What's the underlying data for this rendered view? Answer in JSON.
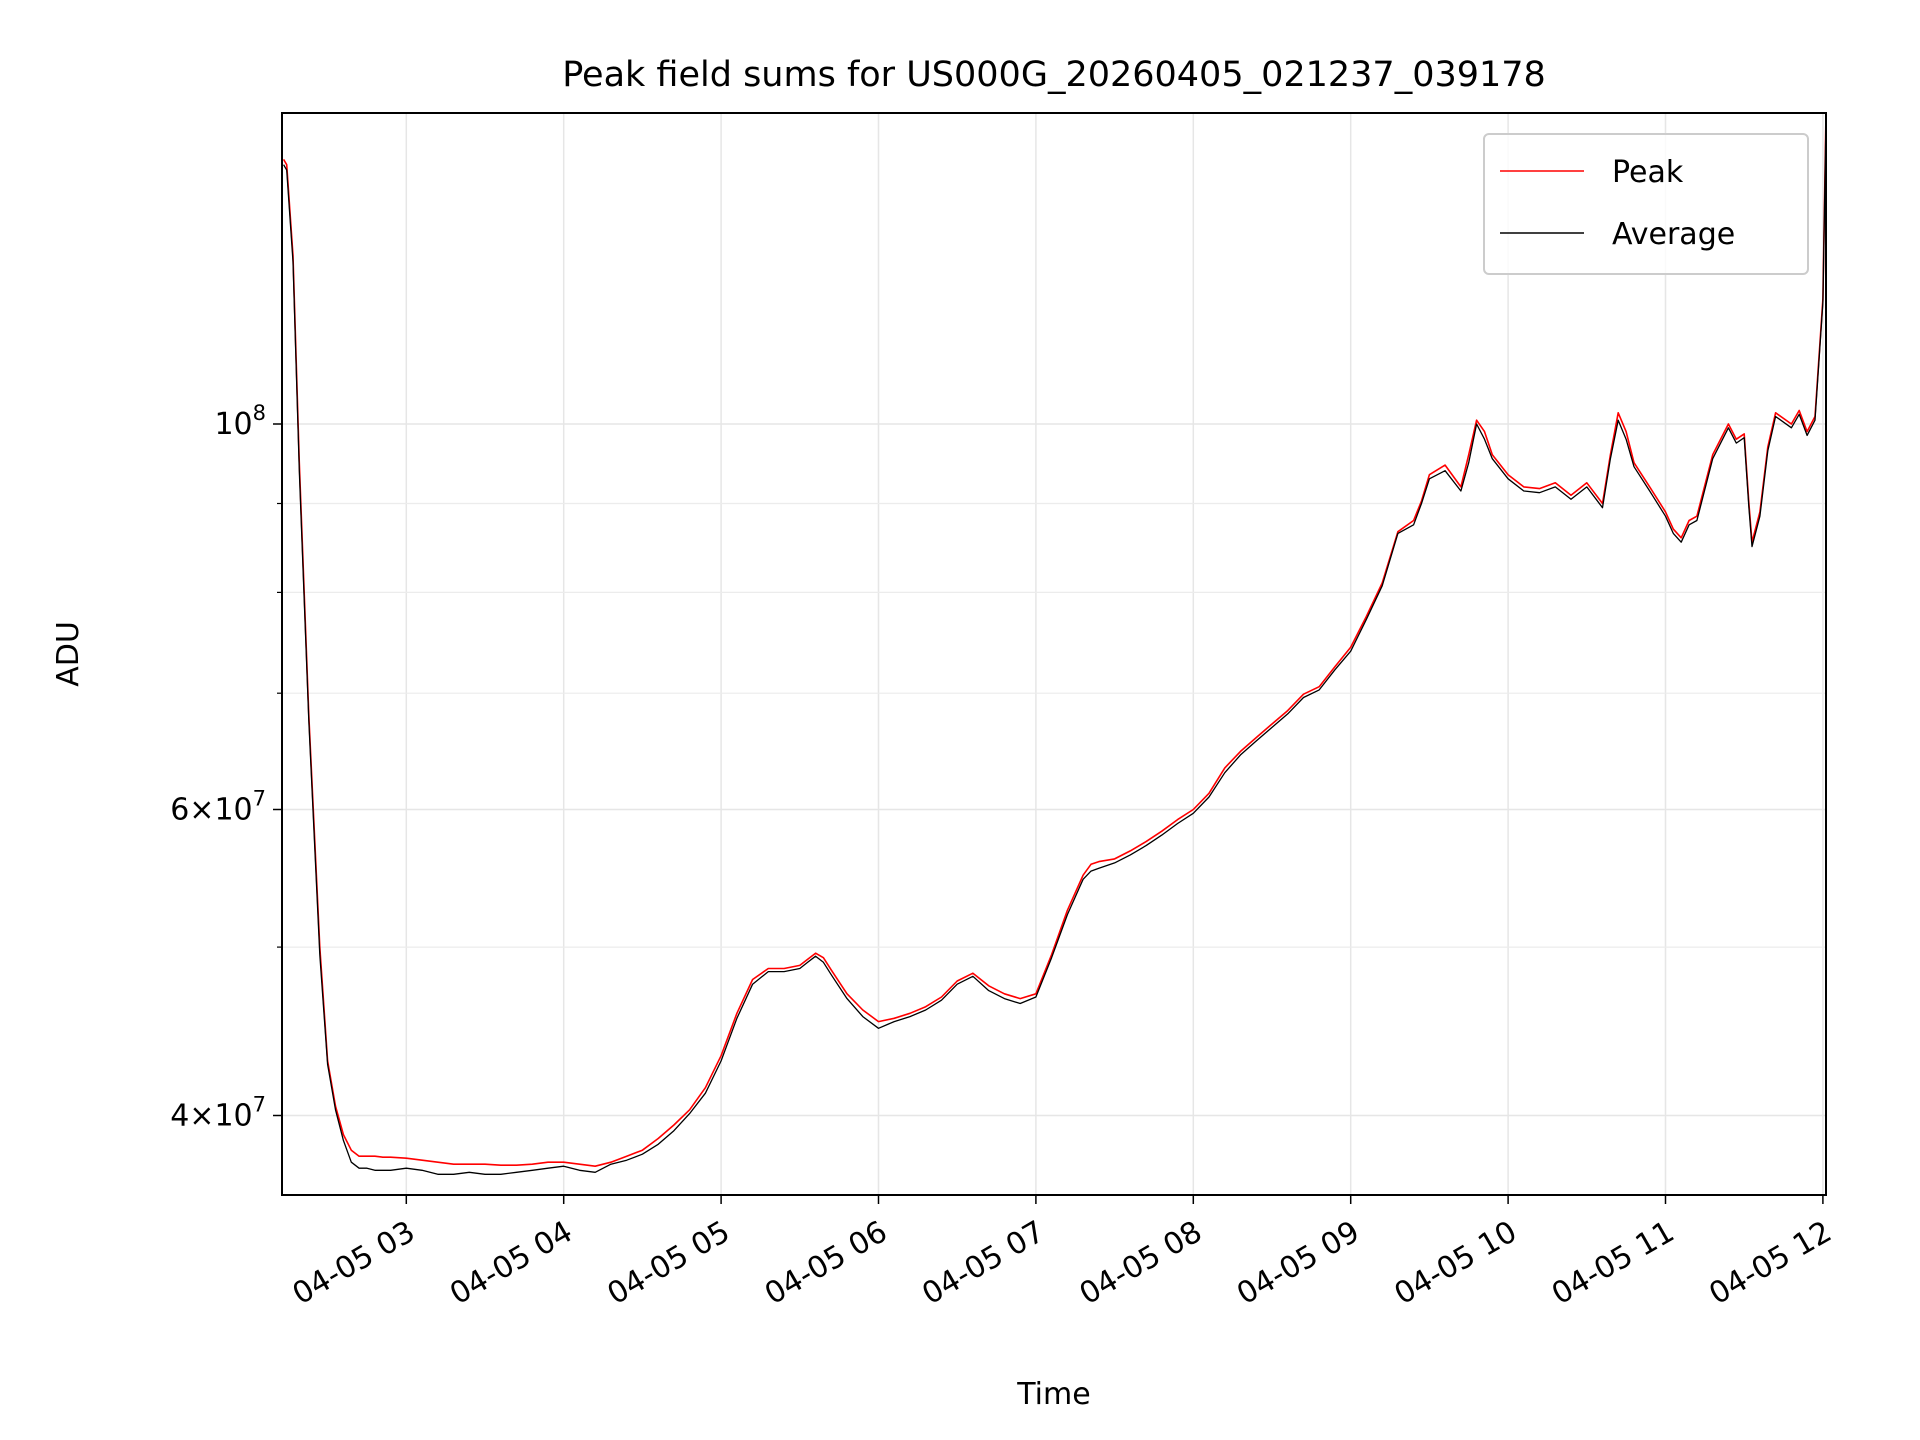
{
  "chart_data": {
    "type": "line",
    "title": "Peak field sums for US000G_20260405_021237_039178",
    "xlabel": "Time",
    "ylabel": "ADU",
    "y_scale": "log",
    "x_unit": "hours after 04-05 00:00",
    "xlim": [
      2.21,
      12.02
    ],
    "ylim": [
      36000000,
      151000000
    ],
    "grid": true,
    "legend_position": "top-right",
    "x_ticks": [
      {
        "value": 3,
        "label": "04-05 03"
      },
      {
        "value": 4,
        "label": "04-05 04"
      },
      {
        "value": 5,
        "label": "04-05 05"
      },
      {
        "value": 6,
        "label": "04-05 06"
      },
      {
        "value": 7,
        "label": "04-05 07"
      },
      {
        "value": 8,
        "label": "04-05 08"
      },
      {
        "value": 9,
        "label": "04-05 09"
      },
      {
        "value": 10,
        "label": "04-05 10"
      },
      {
        "value": 11,
        "label": "04-05 11"
      },
      {
        "value": 12,
        "label": "04-05 12"
      }
    ],
    "y_ticks": [
      {
        "value": 40000000,
        "base": "4×10",
        "exp": "7"
      },
      {
        "value": 60000000,
        "base": "6×10",
        "exp": "7"
      },
      {
        "value": 100000000,
        "base": "10",
        "exp": "8"
      }
    ],
    "y_minor_ticks": [
      50000000,
      70000000,
      80000000,
      90000000
    ],
    "series": [
      {
        "name": "Peak",
        "color": "#ff0000",
        "x": [
          2.22,
          2.24,
          2.28,
          2.32,
          2.38,
          2.45,
          2.5,
          2.55,
          2.6,
          2.65,
          2.7,
          2.75,
          2.8,
          2.85,
          2.9,
          3.0,
          3.1,
          3.2,
          3.3,
          3.4,
          3.5,
          3.6,
          3.7,
          3.8,
          3.9,
          4.0,
          4.1,
          4.2,
          4.3,
          4.4,
          4.5,
          4.6,
          4.7,
          4.8,
          4.9,
          5.0,
          5.1,
          5.2,
          5.3,
          5.4,
          5.5,
          5.55,
          5.6,
          5.65,
          5.7,
          5.8,
          5.9,
          6.0,
          6.1,
          6.2,
          6.3,
          6.4,
          6.5,
          6.6,
          6.7,
          6.8,
          6.9,
          7.0,
          7.1,
          7.2,
          7.3,
          7.35,
          7.4,
          7.5,
          7.6,
          7.7,
          7.8,
          7.9,
          8.0,
          8.1,
          8.2,
          8.3,
          8.4,
          8.5,
          8.6,
          8.7,
          8.8,
          8.9,
          9.0,
          9.1,
          9.2,
          9.3,
          9.4,
          9.45,
          9.5,
          9.6,
          9.7,
          9.75,
          9.8,
          9.85,
          9.9,
          10.0,
          10.1,
          10.2,
          10.3,
          10.4,
          10.5,
          10.6,
          10.65,
          10.7,
          10.75,
          10.8,
          10.9,
          11.0,
          11.05,
          11.1,
          11.15,
          11.2,
          11.3,
          11.4,
          11.45,
          11.5,
          11.53,
          11.55,
          11.6,
          11.65,
          11.7,
          11.8,
          11.85,
          11.9,
          11.95,
          12.0,
          12.02
        ],
        "values": [
          142000000,
          141000000,
          125000000,
          95000000,
          68000000,
          50000000,
          43000000,
          40500000,
          39000000,
          38200000,
          37900000,
          37900000,
          37900000,
          37850000,
          37850000,
          37800000,
          37700000,
          37600000,
          37500000,
          37500000,
          37500000,
          37450000,
          37450000,
          37500000,
          37600000,
          37600000,
          37500000,
          37400000,
          37600000,
          37900000,
          38200000,
          38800000,
          39500000,
          40300000,
          41500000,
          43300000,
          45800000,
          47900000,
          48600000,
          48600000,
          48800000,
          49200000,
          49600000,
          49300000,
          48500000,
          47000000,
          46000000,
          45300000,
          45500000,
          45800000,
          46200000,
          46800000,
          47800000,
          48300000,
          47500000,
          47000000,
          46700000,
          47000000,
          49500000,
          52500000,
          55000000,
          55800000,
          56000000,
          56200000,
          56800000,
          57500000,
          58300000,
          59200000,
          60000000,
          61300000,
          63400000,
          64800000,
          66000000,
          67200000,
          68400000,
          69900000,
          70600000,
          72500000,
          74400000,
          77500000,
          81000000,
          86700000,
          88000000,
          90300000,
          93500000,
          94700000,
          92000000,
          96000000,
          100500000,
          99000000,
          96000000,
          93500000,
          92000000,
          91800000,
          92500000,
          91000000,
          92500000,
          90000000,
          96000000,
          101500000,
          99000000,
          95000000,
          92000000,
          89000000,
          87000000,
          86000000,
          88000000,
          88500000,
          96000000,
          100000000,
          98000000,
          98700000,
          90000000,
          85500000,
          89000000,
          97000000,
          101500000,
          100000000,
          101800000,
          99000000,
          101000000,
          118000000,
          151000000
        ]
      },
      {
        "name": "Average",
        "color": "#000000",
        "x": [
          2.22,
          2.24,
          2.28,
          2.32,
          2.38,
          2.45,
          2.5,
          2.55,
          2.6,
          2.65,
          2.7,
          2.75,
          2.8,
          2.85,
          2.9,
          3.0,
          3.1,
          3.2,
          3.3,
          3.4,
          3.5,
          3.6,
          3.7,
          3.8,
          3.9,
          4.0,
          4.1,
          4.2,
          4.3,
          4.4,
          4.5,
          4.6,
          4.7,
          4.8,
          4.9,
          5.0,
          5.1,
          5.2,
          5.3,
          5.4,
          5.5,
          5.55,
          5.6,
          5.65,
          5.7,
          5.8,
          5.9,
          6.0,
          6.1,
          6.2,
          6.3,
          6.4,
          6.5,
          6.6,
          6.7,
          6.8,
          6.9,
          7.0,
          7.1,
          7.2,
          7.3,
          7.35,
          7.4,
          7.5,
          7.6,
          7.7,
          7.8,
          7.9,
          8.0,
          8.1,
          8.2,
          8.3,
          8.4,
          8.5,
          8.6,
          8.7,
          8.8,
          8.9,
          9.0,
          9.1,
          9.2,
          9.3,
          9.4,
          9.45,
          9.5,
          9.6,
          9.7,
          9.75,
          9.8,
          9.85,
          9.9,
          10.0,
          10.1,
          10.2,
          10.3,
          10.4,
          10.5,
          10.6,
          10.65,
          10.7,
          10.75,
          10.8,
          10.9,
          11.0,
          11.05,
          11.1,
          11.15,
          11.2,
          11.3,
          11.4,
          11.45,
          11.5,
          11.53,
          11.55,
          11.6,
          11.65,
          11.7,
          11.8,
          11.85,
          11.9,
          11.95,
          12.0,
          12.02
        ],
        "values": [
          141000000,
          140000000,
          124000000,
          94000000,
          67500000,
          49500000,
          42800000,
          40300000,
          38700000,
          37600000,
          37300000,
          37300000,
          37200000,
          37200000,
          37200000,
          37300000,
          37200000,
          37000000,
          37000000,
          37100000,
          37000000,
          37000000,
          37100000,
          37200000,
          37300000,
          37400000,
          37200000,
          37100000,
          37500000,
          37700000,
          38000000,
          38500000,
          39200000,
          40100000,
          41200000,
          43000000,
          45500000,
          47600000,
          48400000,
          48400000,
          48600000,
          49000000,
          49400000,
          49000000,
          48200000,
          46700000,
          45600000,
          44900000,
          45300000,
          45600000,
          46000000,
          46600000,
          47600000,
          48100000,
          47200000,
          46700000,
          46400000,
          46800000,
          49300000,
          52200000,
          54700000,
          55300000,
          55500000,
          55900000,
          56500000,
          57200000,
          58000000,
          58900000,
          59700000,
          61000000,
          63000000,
          64500000,
          65700000,
          66900000,
          68100000,
          69600000,
          70300000,
          72200000,
          74000000,
          77200000,
          80700000,
          86500000,
          87500000,
          90000000,
          93000000,
          94000000,
          91500000,
          95000000,
          100000000,
          98000000,
          95500000,
          93000000,
          91500000,
          91300000,
          92000000,
          90500000,
          92000000,
          89500000,
          95500000,
          100500000,
          98000000,
          94500000,
          91500000,
          88500000,
          86500000,
          85500000,
          87500000,
          88000000,
          95500000,
          99500000,
          97500000,
          98200000,
          89500000,
          85000000,
          88500000,
          96500000,
          101000000,
          99500000,
          101300000,
          98500000,
          100500000,
          117500000,
          150000000
        ]
      }
    ]
  }
}
